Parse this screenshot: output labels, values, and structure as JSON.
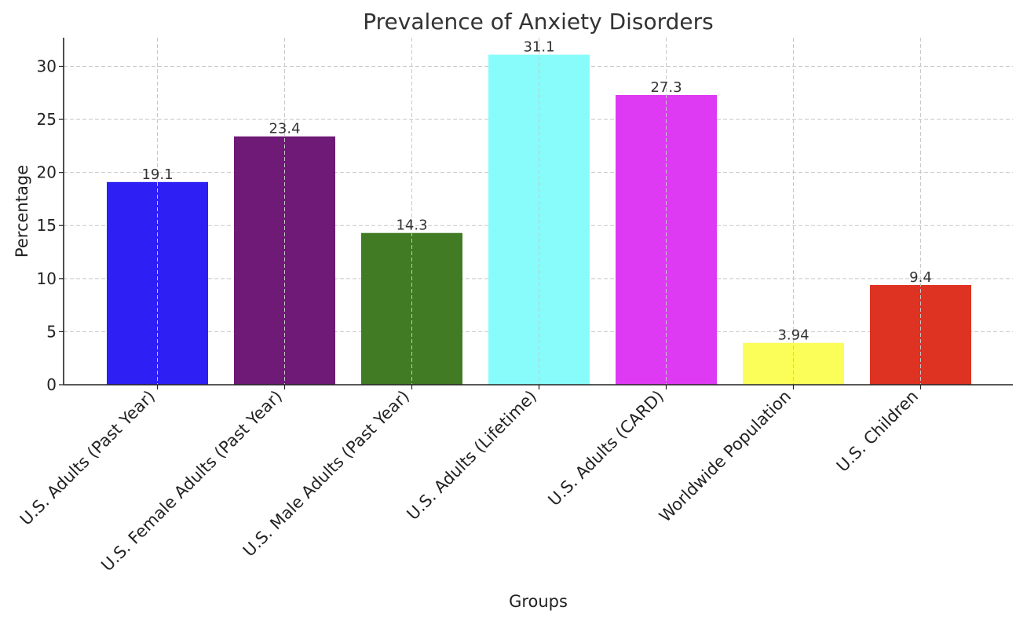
{
  "chart_data": {
    "type": "bar",
    "title": "Prevalence of Anxiety Disorders",
    "xlabel": "Groups",
    "ylabel": "Percentage",
    "categories": [
      "U.S. Adults (Past Year)",
      "U.S. Female Adults (Past Year)",
      "U.S. Male Adults (Past Year)",
      "U.S. Adults (Lifetime)",
      "U.S. Adults (CARD)",
      "Worldwide Population",
      "U.S. Children"
    ],
    "values": [
      19.1,
      23.4,
      14.3,
      31.1,
      27.3,
      3.94,
      9.4
    ],
    "value_labels": [
      "19.1",
      "23.4",
      "14.3",
      "31.1",
      "27.3",
      "3.94",
      "9.4"
    ],
    "colors": [
      "#2e1ff5",
      "#6e1a76",
      "#417b24",
      "#88fcfa",
      "#de3af3",
      "#fbfe58",
      "#de3322"
    ],
    "ylim": [
      0,
      32.7
    ],
    "yticks": [
      0,
      5,
      10,
      15,
      20,
      25,
      30
    ],
    "grid": true,
    "x_tick_rotation": "45-degree"
  }
}
